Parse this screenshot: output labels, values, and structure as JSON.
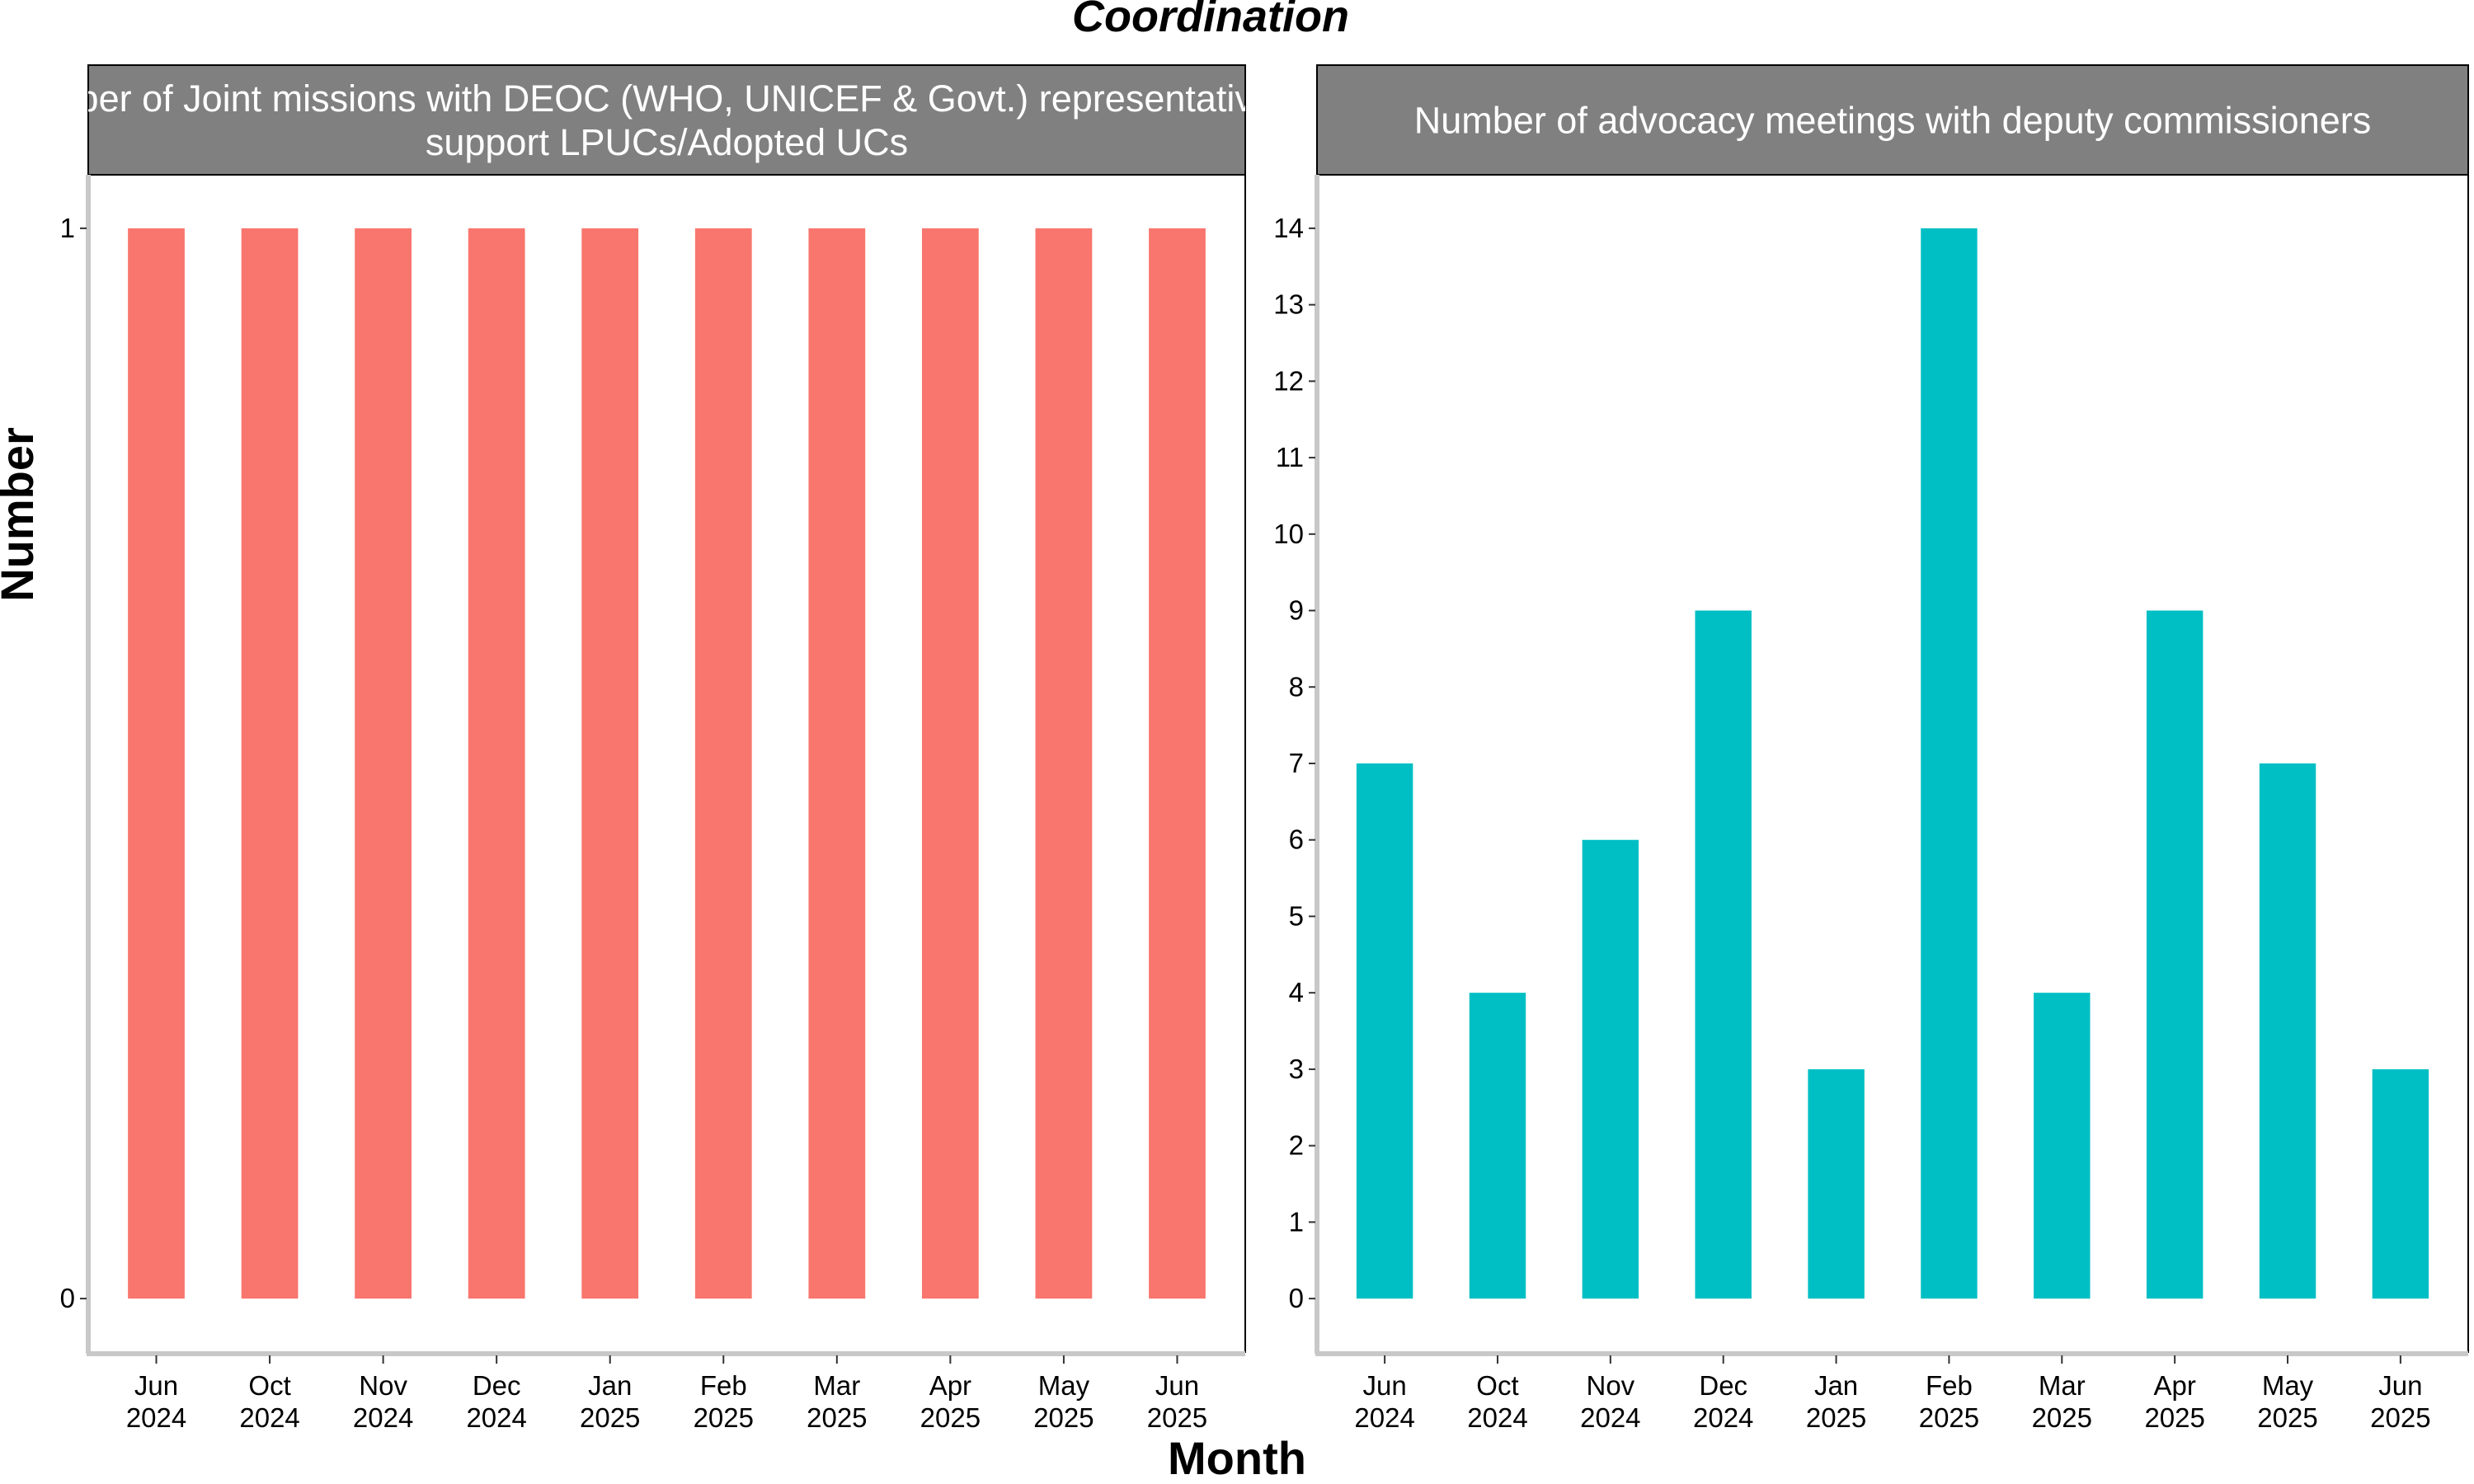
{
  "figure_title": "Coordination",
  "x_axis_title": "Month",
  "y_axis_title": "Number",
  "colors": {
    "panel1_bar": "#F8766D",
    "panel2_bar": "#00BFC4",
    "strip_bg": "#808080",
    "strip_text": "#FFFFFF"
  },
  "chart_data": [
    {
      "type": "bar",
      "title": "Number of Joint missions with DEOC (WHO, UNICEF & Govt.) representatives to support LPUCs/Adopted UCs",
      "title_lines": [
        "Number of Joint missions with DEOC (WHO, UNICEF & Govt.) representatives to",
        "support LPUCs/Adopted UCs"
      ],
      "categories": [
        {
          "month": "Jun",
          "year": "2024"
        },
        {
          "month": "Oct",
          "year": "2024"
        },
        {
          "month": "Nov",
          "year": "2024"
        },
        {
          "month": "Dec",
          "year": "2024"
        },
        {
          "month": "Jan",
          "year": "2025"
        },
        {
          "month": "Feb",
          "year": "2025"
        },
        {
          "month": "Mar",
          "year": "2025"
        },
        {
          "month": "Apr",
          "year": "2025"
        },
        {
          "month": "May",
          "year": "2025"
        },
        {
          "month": "Jun",
          "year": "2025"
        }
      ],
      "values": [
        1,
        1,
        1,
        1,
        1,
        1,
        1,
        1,
        1,
        1
      ],
      "yticks": [
        0,
        1
      ],
      "ylim": [
        -0.05,
        1.05
      ],
      "xlabel": "Month",
      "ylabel": "Number",
      "grid": false
    },
    {
      "type": "bar",
      "title": "Number of advocacy meetings with deputy commissioners",
      "title_lines": [
        "Number of advocacy meetings with deputy commissioners"
      ],
      "categories": [
        {
          "month": "Jun",
          "year": "2024"
        },
        {
          "month": "Oct",
          "year": "2024"
        },
        {
          "month": "Nov",
          "year": "2024"
        },
        {
          "month": "Dec",
          "year": "2024"
        },
        {
          "month": "Jan",
          "year": "2025"
        },
        {
          "month": "Feb",
          "year": "2025"
        },
        {
          "month": "Mar",
          "year": "2025"
        },
        {
          "month": "Apr",
          "year": "2025"
        },
        {
          "month": "May",
          "year": "2025"
        },
        {
          "month": "Jun",
          "year": "2025"
        }
      ],
      "values": [
        7,
        4,
        6,
        9,
        3,
        14,
        4,
        9,
        7,
        3
      ],
      "yticks": [
        0,
        1,
        2,
        3,
        4,
        5,
        6,
        7,
        8,
        9,
        10,
        11,
        12,
        13,
        14
      ],
      "ylim": [
        -0.7,
        14.7
      ],
      "xlabel": "Month",
      "ylabel": "Number",
      "grid": false
    }
  ]
}
